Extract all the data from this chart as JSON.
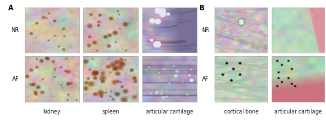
{
  "title_A": "A",
  "title_B": "B",
  "row_labels": [
    "NR",
    "AF"
  ],
  "col_labels_A": [
    "kidney",
    "spleen",
    "articular cartilage"
  ],
  "col_labels_B": [
    "cortical bone",
    "articular cartilage"
  ],
  "background_color": "#ffffff",
  "label_fontsize": 5.5,
  "title_fontsize": 7,
  "row_label_fontsize": 5.5,
  "figure_width": 4.74,
  "figure_height": 1.77,
  "dpi": 100
}
